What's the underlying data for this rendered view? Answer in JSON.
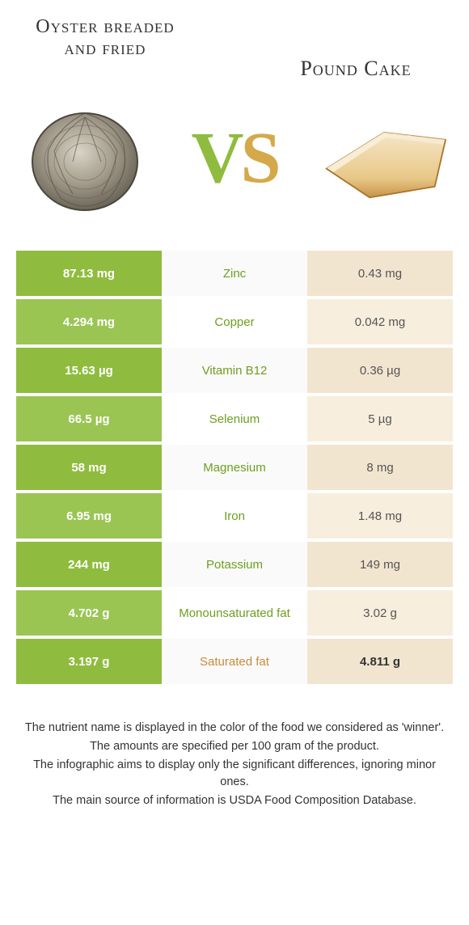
{
  "foods": {
    "left": {
      "title": "Oyster breaded and fried",
      "color": "#8fbc3e"
    },
    "right": {
      "title": "Pound Cake",
      "color": "#e3a757"
    }
  },
  "vs": {
    "v_color": "#8fbc3e",
    "s_color": "#d4a94a"
  },
  "row_colors": {
    "left_bg": "#8fbc3e",
    "left_bg_alt": "#9ac553",
    "mid_bg": "#fafafa",
    "mid_bg_alt": "#ffffff",
    "right_bg": "#f2e5d0",
    "right_bg_alt": "#f7eedd",
    "winner_left_text": "#6e9e1f",
    "winner_right_text": "#c98b3a"
  },
  "nutrients": [
    {
      "name": "Zinc",
      "left": "87.13 mg",
      "right": "0.43 mg",
      "winner": "left"
    },
    {
      "name": "Copper",
      "left": "4.294 mg",
      "right": "0.042 mg",
      "winner": "left"
    },
    {
      "name": "Vitamin B12",
      "left": "15.63 µg",
      "right": "0.36 µg",
      "winner": "left"
    },
    {
      "name": "Selenium",
      "left": "66.5 µg",
      "right": "5 µg",
      "winner": "left"
    },
    {
      "name": "Magnesium",
      "left": "58 mg",
      "right": "8 mg",
      "winner": "left"
    },
    {
      "name": "Iron",
      "left": "6.95 mg",
      "right": "1.48 mg",
      "winner": "left"
    },
    {
      "name": "Potassium",
      "left": "244 mg",
      "right": "149 mg",
      "winner": "left"
    },
    {
      "name": "Monounsaturated fat",
      "left": "4.702 g",
      "right": "3.02 g",
      "winner": "left"
    },
    {
      "name": "Saturated fat",
      "left": "3.197 g",
      "right": "4.811 g",
      "winner": "right"
    }
  ],
  "footer": {
    "line1": "The nutrient name is displayed in the color of the food we considered as 'winner'.",
    "line2": "The amounts are specified per 100 gram of the product.",
    "line3": "The infographic aims to display only the significant differences, ignoring minor ones.",
    "line4": "The main source of information is USDA Food Composition Database."
  }
}
